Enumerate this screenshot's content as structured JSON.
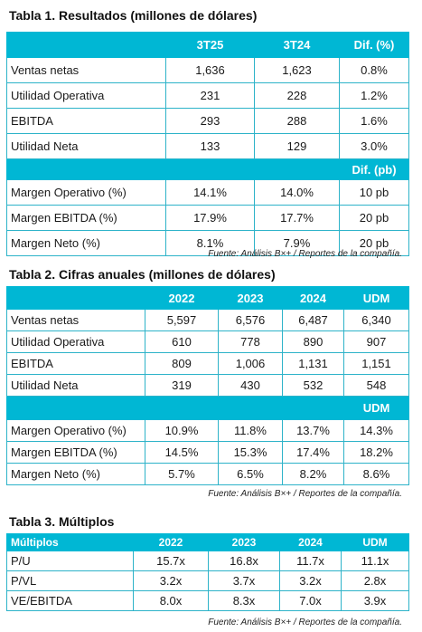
{
  "table1": {
    "title": "Tabla 1. Resultados (millones de dólares)",
    "headers": [
      "",
      "3T25",
      "3T24",
      "Dif. (%)"
    ],
    "rows": [
      [
        "Ventas netas",
        "1,636",
        "1,623",
        "0.8%"
      ],
      [
        "Utilidad Operativa",
        "231",
        "228",
        "1.2%"
      ],
      [
        "EBITDA",
        "293",
        "288",
        "1.6%"
      ],
      [
        "Utilidad Neta",
        "133",
        "129",
        "3.0%"
      ]
    ],
    "subheader": [
      "",
      "",
      "",
      "Dif. (pb)"
    ],
    "margin_rows": [
      [
        "Margen Operativo (%)",
        "14.1%",
        "14.0%",
        "10 pb"
      ],
      [
        "Margen EBITDA (%)",
        "17.9%",
        "17.7%",
        "20 pb"
      ],
      [
        "Margen Neto (%)",
        "8.1%",
        "7.9%",
        "20 pb"
      ]
    ],
    "source": "Fuente: Análisis B×+ / Reportes de la compañía."
  },
  "table2": {
    "title": "Tabla 2. Cifras anuales (millones de dólares)",
    "headers": [
      "",
      "2022",
      "2023",
      "2024",
      "UDM"
    ],
    "rows": [
      [
        "Ventas netas",
        "5,597",
        "6,576",
        "6,487",
        "6,340"
      ],
      [
        "Utilidad Operativa",
        "610",
        "778",
        "890",
        "907"
      ],
      [
        "EBITDA",
        "809",
        "1,006",
        "1,131",
        "1,151"
      ],
      [
        "Utilidad Neta",
        "319",
        "430",
        "532",
        "548"
      ]
    ],
    "subheader": [
      "",
      "",
      "",
      "",
      "UDM"
    ],
    "margin_rows": [
      [
        "Margen Operativo (%)",
        "10.9%",
        "11.8%",
        "13.7%",
        "14.3%"
      ],
      [
        "Margen EBITDA (%)",
        "14.5%",
        "15.3%",
        "17.4%",
        "18.2%"
      ],
      [
        "Margen Neto (%)",
        "5.7%",
        "6.5%",
        "8.2%",
        "8.6%"
      ]
    ],
    "source": "Fuente: Análisis B×+ / Reportes de la compañía."
  },
  "table3": {
    "title": "Tabla 3. Múltiplos",
    "headers": [
      "Múltiplos",
      "2022",
      "2023",
      "2024",
      "UDM"
    ],
    "rows": [
      [
        "P/U",
        "15.7x",
        "16.8x",
        "11.7x",
        "11.1x"
      ],
      [
        "P/VL",
        "3.2x",
        "3.7x",
        "3.2x",
        "2.8x"
      ],
      [
        "VE/EBITDA",
        "8.0x",
        "8.3x",
        "7.0x",
        "3.9x"
      ]
    ],
    "source": "Fuente: Análisis B×+ / Reportes de la compañía."
  }
}
